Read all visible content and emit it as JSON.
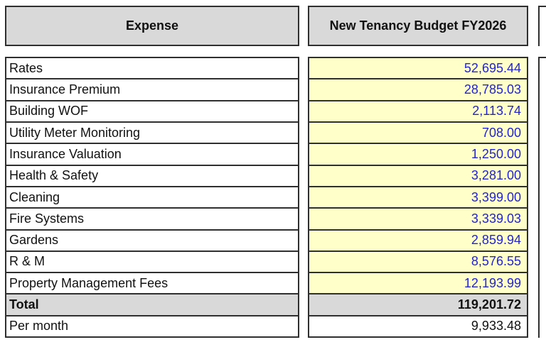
{
  "colors": {
    "page_bg": "#ffffff",
    "header_bg": "#d9d9d9",
    "total_bg": "#d9d9d9",
    "value_bg": "#ffffc9",
    "value_text": "#2424cc",
    "text": "#111111",
    "border": "#2f2f2f"
  },
  "table": {
    "headers": {
      "expense": "Expense",
      "budget": "New Tenancy Budget FY2026"
    },
    "rows": [
      {
        "label": "Rates",
        "value": "52,695.44",
        "type": "normal"
      },
      {
        "label": "Insurance Premium",
        "value": "28,785.03",
        "type": "normal"
      },
      {
        "label": "Building WOF",
        "value": "2,113.74",
        "type": "normal"
      },
      {
        "label": "Utility Meter Monitoring",
        "value": "708.00",
        "type": "normal"
      },
      {
        "label": "Insurance Valuation",
        "value": "1,250.00",
        "type": "normal"
      },
      {
        "label": "Health & Safety",
        "value": "3,281.00",
        "type": "normal"
      },
      {
        "label": "Cleaning",
        "value": "3,399.00",
        "type": "normal"
      },
      {
        "label": "Fire Systems",
        "value": "3,339.03",
        "type": "normal"
      },
      {
        "label": "Gardens",
        "value": "2,859.94",
        "type": "normal"
      },
      {
        "label": "R & M",
        "value": "8,576.55",
        "type": "normal"
      },
      {
        "label": "Property Management Fees",
        "value": "12,193.99",
        "type": "normal"
      },
      {
        "label": "Total",
        "value": "119,201.72",
        "type": "total"
      },
      {
        "label": "Per month",
        "value": "9,933.48",
        "type": "per-month"
      }
    ]
  },
  "chart_data": {
    "type": "table",
    "title": "New Tenancy Budget FY2026",
    "categories": [
      "Rates",
      "Insurance Premium",
      "Building WOF",
      "Utility Meter Monitoring",
      "Insurance Valuation",
      "Health & Safety",
      "Cleaning",
      "Fire Systems",
      "Gardens",
      "R & M",
      "Property Management Fees",
      "Total",
      "Per month"
    ],
    "values": [
      52695.44,
      28785.03,
      2113.74,
      708.0,
      1250.0,
      3281.0,
      3399.0,
      3339.03,
      2859.94,
      8576.55,
      12193.99,
      119201.72,
      9933.48
    ]
  }
}
